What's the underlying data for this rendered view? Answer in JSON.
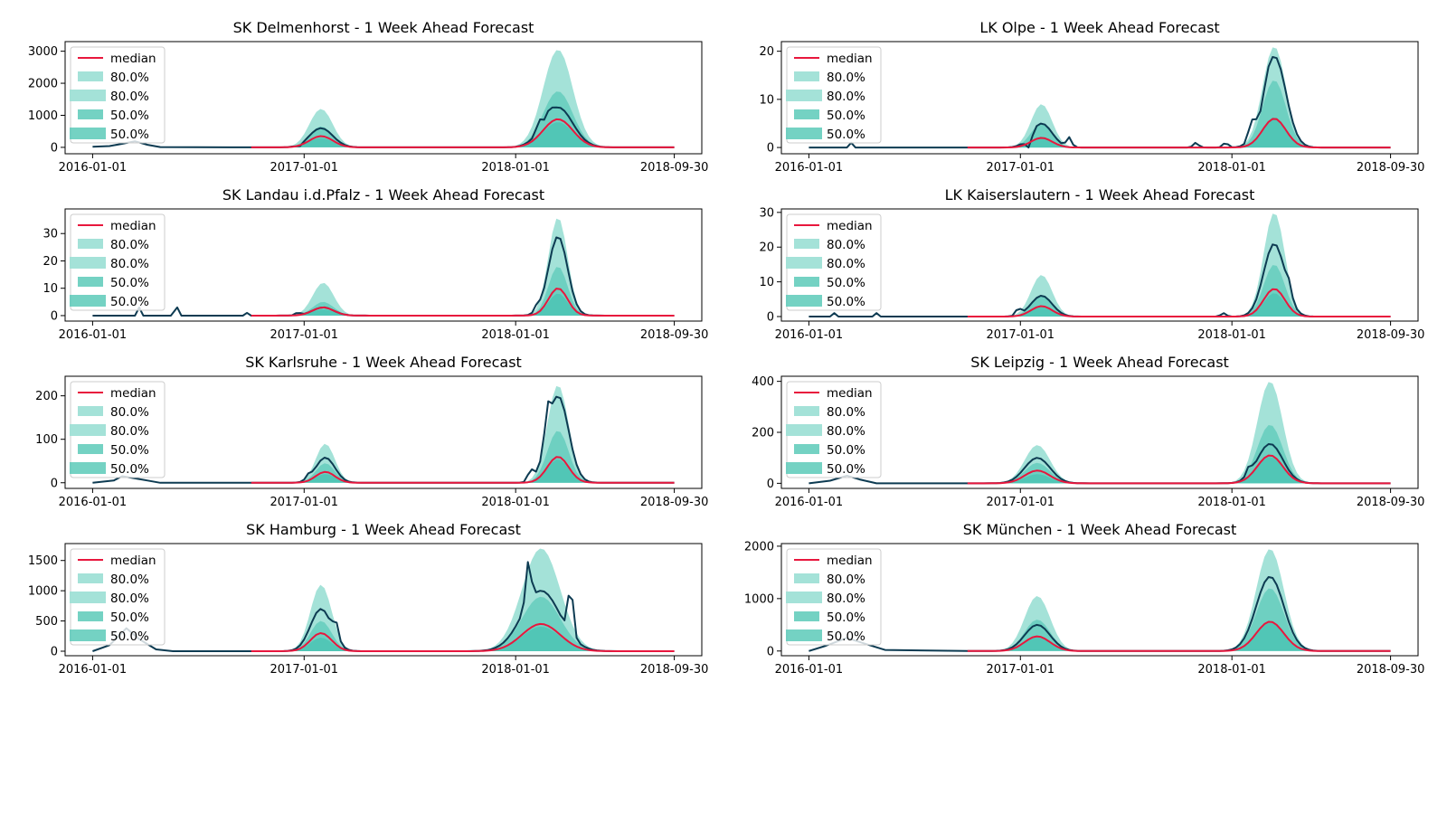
{
  "figure": {
    "colors": {
      "band_outer": "#9fe0d6",
      "band_inner": "#5ccab9",
      "band_core": "#45c2b0",
      "truth": "#0d3b52",
      "median": "#e8173d",
      "axes": "#000000"
    }
  },
  "chart_data": [
    {
      "type": "area",
      "title": "SK Delmenhorst - 1 Week Ahead Forecast",
      "x_tick_labels": [
        "2016-01-01",
        "2017-01-01",
        "2018-01-01",
        "2018-09-30"
      ],
      "x_ticks_years": [
        2016.0,
        2017.0,
        2018.0,
        2018.75
      ],
      "xlim": [
        2015.87,
        2018.88
      ],
      "ylim": [
        -200,
        3300
      ],
      "y_ticks": [
        0,
        1000,
        2000,
        3000
      ],
      "y_tick_labels": [
        "0",
        "1000",
        "2000",
        "3000"
      ],
      "legend": [
        "median",
        "80.0%",
        "80.0%",
        "50.0%",
        "50.0%"
      ],
      "legend_location": "upper left",
      "forecast_start": 2016.75,
      "season_peaks": [
        {
          "center": 2017.08,
          "width": 0.055,
          "median": 350,
          "truth": 600,
          "upper80": 1200,
          "upper50": 650,
          "extra_truth": [
            [
              2016.98,
              -80
            ]
          ]
        },
        {
          "center": 2018.2,
          "width": 0.07,
          "median": 880,
          "truth": 1250,
          "upper80": 3050,
          "upper50": 1750,
          "extra_truth": [
            [
              2018.11,
              300
            ],
            [
              2018.16,
              150
            ]
          ]
        }
      ],
      "truth_history": [
        [
          2016.0,
          20
        ],
        [
          2016.08,
          40
        ],
        [
          2016.14,
          110
        ],
        [
          2016.2,
          190
        ],
        [
          2016.26,
          80
        ],
        [
          2016.32,
          10
        ],
        [
          2016.75,
          0
        ]
      ]
    },
    {
      "type": "area",
      "title": "LK Olpe - 1 Week Ahead Forecast",
      "x_tick_labels": [
        "2016-01-01",
        "2017-01-01",
        "2018-01-01",
        "2018-09-30"
      ],
      "x_ticks_years": [
        2016.0,
        2017.0,
        2018.0,
        2018.75
      ],
      "xlim": [
        2015.87,
        2018.88
      ],
      "ylim": [
        -1.3,
        22
      ],
      "y_ticks": [
        0,
        10,
        20
      ],
      "y_tick_labels": [
        "0",
        "10",
        "20"
      ],
      "legend": [
        "median",
        "80.0%",
        "80.0%",
        "50.0%",
        "50.0%"
      ],
      "legend_location": "upper left",
      "forecast_start": 2016.75,
      "season_peaks": [
        {
          "center": 2017.1,
          "width": 0.05,
          "median": 2,
          "truth": 5,
          "upper80": 9,
          "upper50": 5,
          "extra_truth": [
            [
              2017.04,
              -3
            ],
            [
              2017.23,
              2
            ]
          ]
        },
        {
          "center": 2018.2,
          "width": 0.055,
          "median": 6,
          "truth": 19,
          "upper80": 21,
          "upper50": 14,
          "extra_truth": [
            [
              2017.83,
              1
            ],
            [
              2017.97,
              1
            ],
            [
              2018.09,
              3
            ],
            [
              2018.14,
              -2
            ]
          ]
        }
      ],
      "truth_history": [
        [
          2016.0,
          0
        ],
        [
          2016.18,
          0
        ],
        [
          2016.2,
          1
        ],
        [
          2016.22,
          0
        ],
        [
          2016.75,
          0
        ]
      ]
    },
    {
      "type": "area",
      "title": "SK Landau i.d.Pfalz - 1 Week Ahead Forecast",
      "x_tick_labels": [
        "2016-01-01",
        "2017-01-01",
        "2018-01-01",
        "2018-09-30"
      ],
      "x_ticks_years": [
        2016.0,
        2017.0,
        2018.0,
        2018.75
      ],
      "xlim": [
        2015.87,
        2018.88
      ],
      "ylim": [
        -2,
        39
      ],
      "y_ticks": [
        0,
        10,
        20,
        30
      ],
      "y_tick_labels": [
        "0",
        "10",
        "20",
        "30"
      ],
      "legend": [
        "median",
        "80.0%",
        "80.0%",
        "50.0%",
        "50.0%"
      ],
      "legend_location": "upper left",
      "forecast_start": 2016.75,
      "season_peaks": [
        {
          "center": 2017.09,
          "width": 0.05,
          "median": 3,
          "truth": 3,
          "upper80": 12,
          "upper50": 5,
          "extra_truth": [
            [
              2016.97,
              1
            ]
          ]
        },
        {
          "center": 2018.2,
          "width": 0.045,
          "median": 10,
          "truth": 29,
          "upper80": 36,
          "upper50": 18,
          "extra_truth": [
            [
              2018.1,
              2
            ]
          ]
        }
      ],
      "truth_history": [
        [
          2016.0,
          0
        ],
        [
          2016.2,
          0
        ],
        [
          2016.22,
          3
        ],
        [
          2016.24,
          0
        ],
        [
          2016.37,
          0
        ],
        [
          2016.4,
          3
        ],
        [
          2016.42,
          0
        ],
        [
          2016.71,
          0
        ],
        [
          2016.73,
          1
        ],
        [
          2016.75,
          0
        ]
      ]
    },
    {
      "type": "area",
      "title": "LK Kaiserslautern - 1 Week Ahead Forecast",
      "x_tick_labels": [
        "2016-01-01",
        "2017-01-01",
        "2018-01-01",
        "2018-09-30"
      ],
      "x_ticks_years": [
        2016.0,
        2017.0,
        2018.0,
        2018.75
      ],
      "xlim": [
        2015.87,
        2018.88
      ],
      "ylim": [
        -1.3,
        31
      ],
      "y_ticks": [
        0,
        10,
        20,
        30
      ],
      "y_tick_labels": [
        "0",
        "10",
        "20",
        "30"
      ],
      "legend": [
        "median",
        "80.0%",
        "80.0%",
        "50.0%",
        "50.0%"
      ],
      "legend_location": "upper left",
      "forecast_start": 2016.75,
      "season_peaks": [
        {
          "center": 2017.1,
          "width": 0.05,
          "median": 3,
          "truth": 6,
          "upper80": 12,
          "upper50": 6,
          "extra_truth": [
            [
              2016.99,
              2
            ]
          ]
        },
        {
          "center": 2018.2,
          "width": 0.05,
          "median": 8,
          "truth": 21,
          "upper80": 30,
          "upper50": 15,
          "extra_truth": [
            [
              2017.96,
              1
            ],
            [
              2018.27,
              3
            ]
          ]
        }
      ],
      "truth_history": [
        [
          2016.0,
          0
        ],
        [
          2016.1,
          0
        ],
        [
          2016.12,
          1
        ],
        [
          2016.14,
          0
        ],
        [
          2016.3,
          0
        ],
        [
          2016.32,
          1
        ],
        [
          2016.34,
          0
        ],
        [
          2016.75,
          0
        ]
      ]
    },
    {
      "type": "area",
      "title": "SK Karlsruhe - 1 Week Ahead Forecast",
      "x_tick_labels": [
        "2016-01-01",
        "2017-01-01",
        "2018-01-01",
        "2018-09-30"
      ],
      "x_ticks_years": [
        2016.0,
        2017.0,
        2018.0,
        2018.75
      ],
      "xlim": [
        2015.87,
        2018.88
      ],
      "ylim": [
        -13,
        245
      ],
      "y_ticks": [
        0,
        100,
        200
      ],
      "y_tick_labels": [
        "0",
        "100",
        "200"
      ],
      "legend": [
        "median",
        "80.0%",
        "80.0%",
        "50.0%",
        "50.0%"
      ],
      "legend_location": "upper left",
      "forecast_start": 2016.75,
      "season_peaks": [
        {
          "center": 2017.1,
          "width": 0.045,
          "median": 25,
          "truth": 58,
          "upper80": 90,
          "upper50": 45,
          "extra_truth": [
            [
              2017.02,
              10
            ]
          ]
        },
        {
          "center": 2018.2,
          "width": 0.05,
          "median": 60,
          "truth": 200,
          "upper80": 225,
          "upper50": 120,
          "extra_truth": [
            [
              2018.07,
              25
            ],
            [
              2018.15,
              60
            ]
          ]
        }
      ],
      "truth_history": [
        [
          2016.0,
          0
        ],
        [
          2016.1,
          5
        ],
        [
          2016.14,
          15
        ],
        [
          2016.2,
          10
        ],
        [
          2016.26,
          5
        ],
        [
          2016.32,
          0
        ],
        [
          2016.75,
          0
        ]
      ]
    },
    {
      "type": "area",
      "title": "SK Leipzig - 1 Week Ahead Forecast",
      "x_tick_labels": [
        "2016-01-01",
        "2017-01-01",
        "2018-01-01",
        "2018-09-30"
      ],
      "x_ticks_years": [
        2016.0,
        2017.0,
        2018.0,
        2018.75
      ],
      "xlim": [
        2015.87,
        2018.88
      ],
      "ylim": [
        -20,
        420
      ],
      "y_ticks": [
        0,
        200,
        400
      ],
      "y_tick_labels": [
        "0",
        "200",
        "400"
      ],
      "legend": [
        "median",
        "80.0%",
        "80.0%",
        "50.0%",
        "50.0%"
      ],
      "legend_location": "upper left",
      "forecast_start": 2016.75,
      "season_peaks": [
        {
          "center": 2017.08,
          "width": 0.06,
          "median": 50,
          "truth": 100,
          "upper80": 150,
          "upper50": 80,
          "extra_truth": []
        },
        {
          "center": 2018.18,
          "width": 0.06,
          "median": 110,
          "truth": 155,
          "upper80": 400,
          "upper50": 230,
          "extra_truth": [
            [
              2018.08,
              30
            ]
          ]
        }
      ],
      "truth_history": [
        [
          2016.0,
          0
        ],
        [
          2016.1,
          10
        ],
        [
          2016.18,
          30
        ],
        [
          2016.24,
          15
        ],
        [
          2016.32,
          0
        ],
        [
          2016.75,
          0
        ]
      ]
    },
    {
      "type": "area",
      "title": "SK Hamburg - 1 Week Ahead Forecast",
      "x_tick_labels": [
        "2016-01-01",
        "2017-01-01",
        "2018-01-01",
        "2018-09-30"
      ],
      "x_ticks_years": [
        2016.0,
        2017.0,
        2018.0,
        2018.75
      ],
      "xlim": [
        2015.87,
        2018.88
      ],
      "ylim": [
        -75,
        1780
      ],
      "y_ticks": [
        0,
        500,
        1000,
        1500
      ],
      "y_tick_labels": [
        "0",
        "500",
        "1000",
        "1500"
      ],
      "legend": [
        "median",
        "80.0%",
        "80.0%",
        "50.0%",
        "50.0%"
      ],
      "legend_location": "upper left",
      "forecast_start": 2016.75,
      "season_peaks": [
        {
          "center": 2017.08,
          "width": 0.05,
          "median": 300,
          "truth": 700,
          "upper80": 1100,
          "upper50": 500,
          "extra_truth": [
            [
              2017.15,
              250
            ]
          ]
        },
        {
          "center": 2018.12,
          "width": 0.09,
          "median": 450,
          "truth": 1000,
          "upper80": 1700,
          "upper50": 900,
          "extra_truth": [
            [
              2018.06,
              700
            ],
            [
              2018.26,
              800
            ],
            [
              2018.3,
              0
            ]
          ]
        }
      ],
      "truth_history": [
        [
          2016.0,
          0
        ],
        [
          2016.08,
          100
        ],
        [
          2016.16,
          380
        ],
        [
          2016.22,
          200
        ],
        [
          2016.3,
          30
        ],
        [
          2016.38,
          0
        ],
        [
          2016.75,
          0
        ]
      ]
    },
    {
      "type": "area",
      "title": "SK München - 1 Week Ahead Forecast",
      "x_tick_labels": [
        "2016-01-01",
        "2017-01-01",
        "2018-01-01",
        "2018-09-30"
      ],
      "x_ticks_years": [
        2016.0,
        2017.0,
        2018.0,
        2018.75
      ],
      "xlim": [
        2015.87,
        2018.88
      ],
      "ylim": [
        -90,
        2050
      ],
      "y_ticks": [
        0,
        1000,
        2000
      ],
      "y_tick_labels": [
        "0",
        "1000",
        "2000"
      ],
      "legend": [
        "median",
        "80.0%",
        "80.0%",
        "50.0%",
        "50.0%"
      ],
      "legend_location": "upper left",
      "forecast_start": 2016.75,
      "season_peaks": [
        {
          "center": 2017.08,
          "width": 0.06,
          "median": 280,
          "truth": 500,
          "upper80": 1050,
          "upper50": 600,
          "extra_truth": []
        },
        {
          "center": 2018.18,
          "width": 0.065,
          "median": 560,
          "truth": 1420,
          "upper80": 1950,
          "upper50": 1200,
          "extra_truth": []
        }
      ],
      "truth_history": [
        [
          2016.0,
          0
        ],
        [
          2016.08,
          100
        ],
        [
          2016.18,
          250
        ],
        [
          2016.28,
          120
        ],
        [
          2016.36,
          20
        ],
        [
          2016.75,
          0
        ]
      ]
    }
  ]
}
